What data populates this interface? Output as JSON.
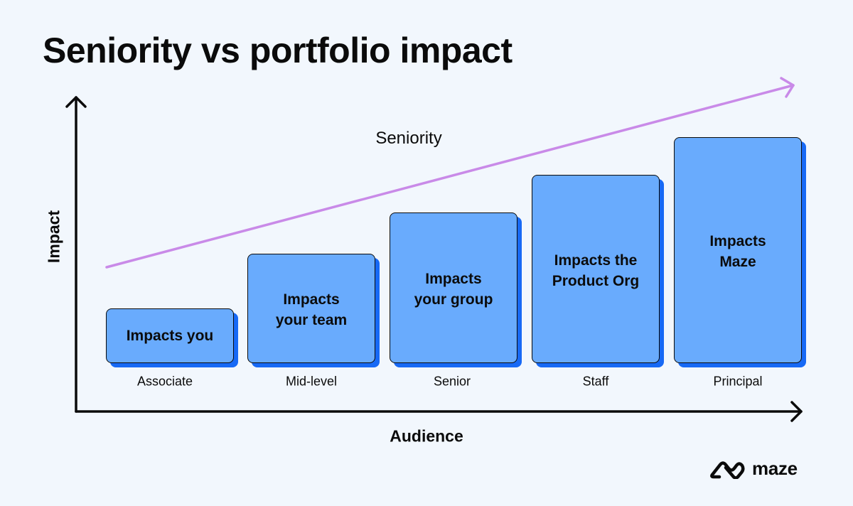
{
  "title": "Seniority vs portfolio impact",
  "axes": {
    "y_label": "Impact",
    "x_label": "Audience"
  },
  "trend_label": "Seniority",
  "levels": [
    {
      "level": "Associate",
      "impact": "Impacts you"
    },
    {
      "level": "Mid-level",
      "impact": "Impacts\nyour team"
    },
    {
      "level": "Senior",
      "impact": "Impacts\nyour group"
    },
    {
      "level": "Staff",
      "impact": "Impacts the\nProduct Org"
    },
    {
      "level": "Principal",
      "impact": "Impacts\nMaze"
    }
  ],
  "logo": {
    "text": "maze",
    "icon": "maze-logo-icon"
  },
  "colors": {
    "background": "#f2f7fd",
    "block_fill": "#69abfd",
    "block_shadow": "#1769f5",
    "trend_arrow": "#c98ae8",
    "axis": "#0b0b0b"
  }
}
